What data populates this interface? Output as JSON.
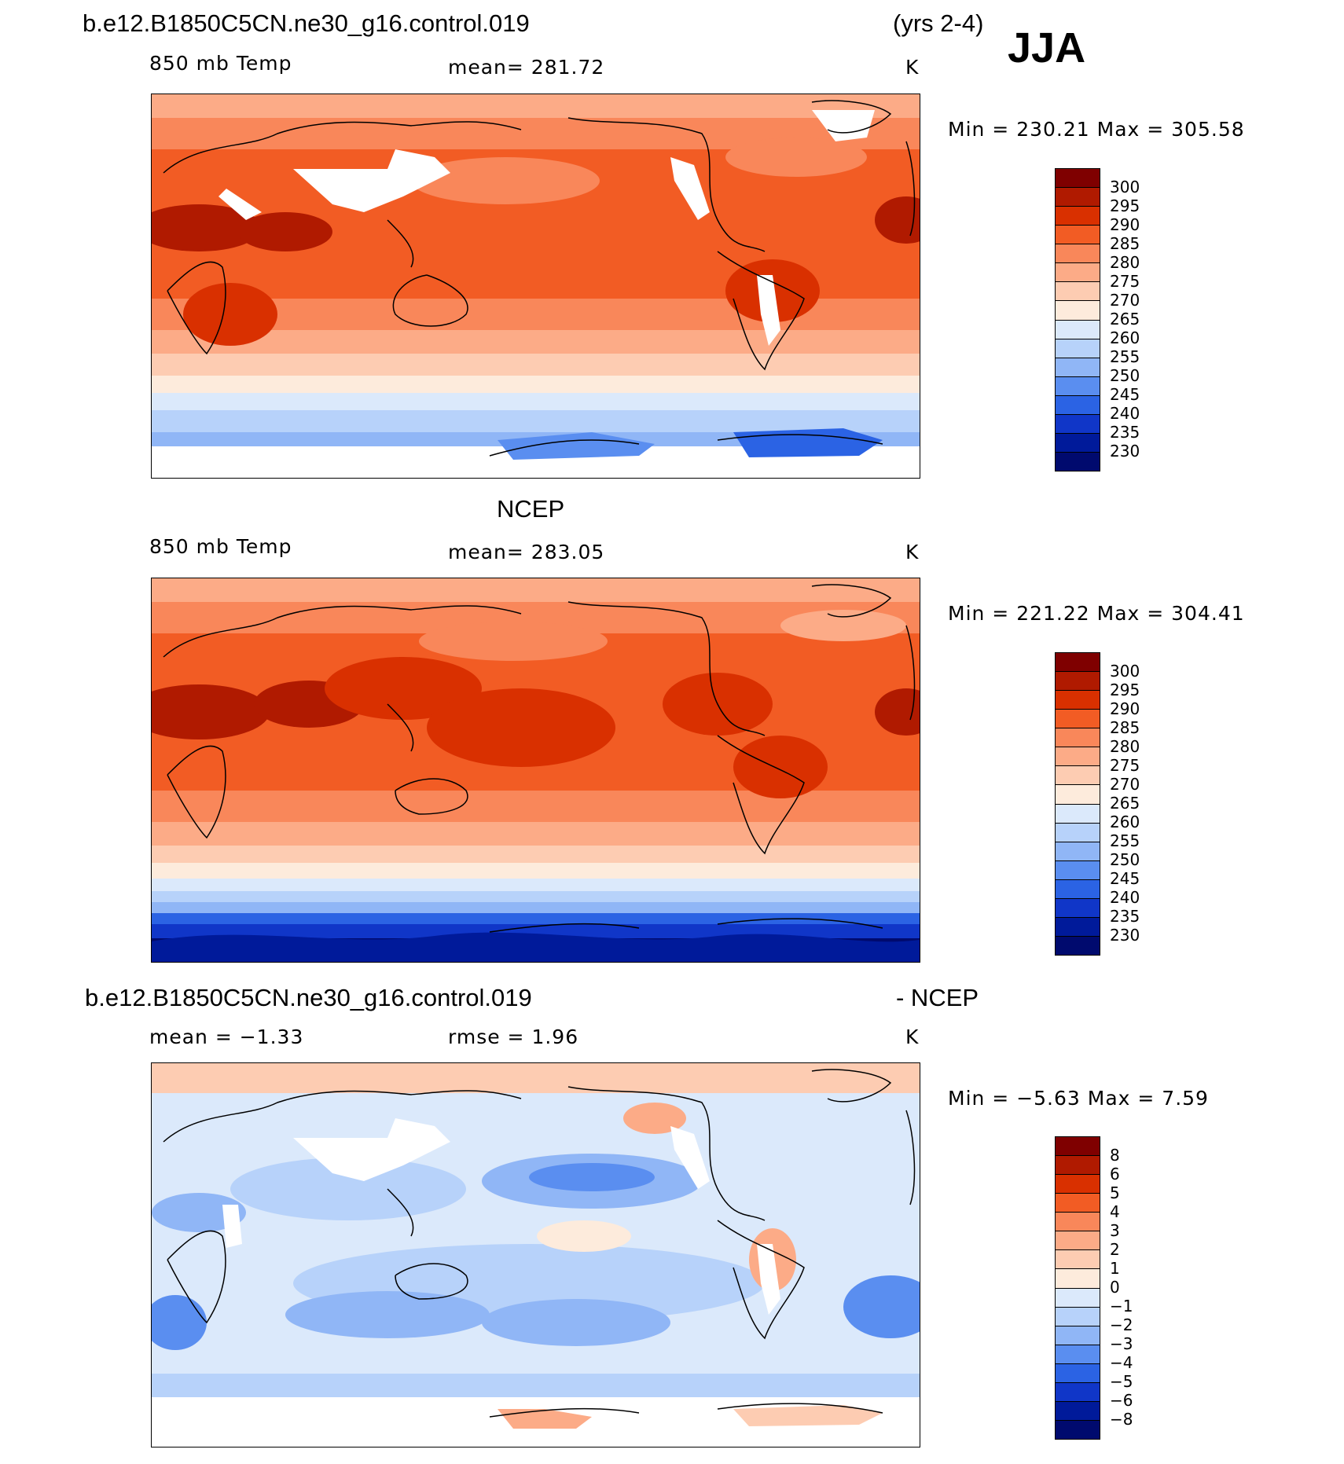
{
  "header": {
    "case_name": "b.e12.B1850C5CN.ne30_g16.control.019",
    "years": "(yrs 2-4)",
    "season": "JJA"
  },
  "panels": [
    {
      "id": "model",
      "title": "",
      "variable": "850 mb Temp",
      "stat": "mean=  281.72",
      "units": "K",
      "minmax": "Min  =  230.21  Max  =  305.58",
      "colorbar_labels": [
        "300",
        "295",
        "290",
        "285",
        "280",
        "275",
        "270",
        "265",
        "260",
        "255",
        "250",
        "245",
        "240",
        "235",
        "230"
      ]
    },
    {
      "id": "obs",
      "title": "NCEP",
      "variable": "850 mb Temp",
      "stat": "mean=  283.05",
      "units": "K",
      "minmax": "Min  =  221.22  Max  =  304.41",
      "colorbar_labels": [
        "300",
        "295",
        "290",
        "285",
        "280",
        "275",
        "270",
        "265",
        "260",
        "255",
        "250",
        "245",
        "240",
        "235",
        "230"
      ]
    },
    {
      "id": "diff",
      "title_left": "b.e12.B1850C5CN.ne30_g16.control.019",
      "title_right": "- NCEP",
      "stat_mean": "mean  =    −1.33",
      "stat_rmse": "rmse  =     1.96",
      "units": "K",
      "minmax": "Min  =    −5.63  Max  =     7.59",
      "colorbar_labels": [
        "8",
        "6",
        "5",
        "4",
        "3",
        "2",
        "1",
        "0",
        "−1",
        "−2",
        "−3",
        "−4",
        "−5",
        "−6",
        "−8"
      ]
    }
  ],
  "colors": {
    "scale_temp": [
      "#7f0000",
      "#b01a00",
      "#d93000",
      "#f25c24",
      "#f9875a",
      "#fcab87",
      "#fdccb2",
      "#fdebdc",
      "#dbe9fb",
      "#b7d2fa",
      "#90b6f6",
      "#5a8ef0",
      "#2b63e4",
      "#1036c8",
      "#001a9a",
      "#000a6e"
    ],
    "scale_diff": [
      "#7f0000",
      "#b01a00",
      "#d93000",
      "#f25c24",
      "#f9875a",
      "#fcab87",
      "#fdccb2",
      "#fdebdc",
      "#dbe9fb",
      "#b7d2fa",
      "#90b6f6",
      "#5a8ef0",
      "#2b63e4",
      "#1036c8",
      "#001a9a",
      "#000a6e"
    ]
  }
}
